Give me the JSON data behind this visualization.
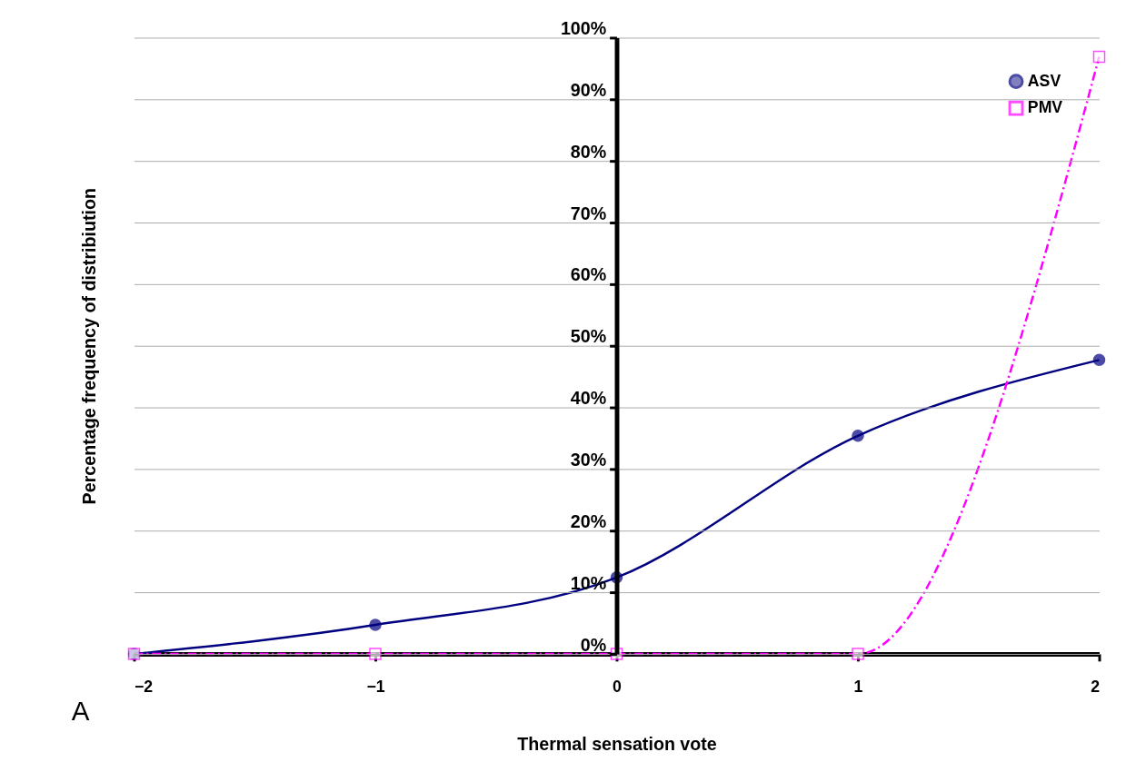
{
  "chart_data": {
    "type": "line",
    "xlabel": "Thermal sensation vote",
    "ylabel": "Percentage frequency of distribiution",
    "x": [
      -2,
      -1,
      0,
      1,
      2
    ],
    "xlim": [
      -2,
      2
    ],
    "xticks": [
      -2,
      -1,
      0,
      1,
      2
    ],
    "ylim": [
      0,
      1
    ],
    "yticks": [
      {
        "value": 0,
        "label": "0%"
      },
      {
        "value": 0.1,
        "label": "10%"
      },
      {
        "value": 0.2,
        "label": "20%"
      },
      {
        "value": 0.3,
        "label": "30%"
      },
      {
        "value": 0.4,
        "label": "40%"
      },
      {
        "value": 0.5,
        "label": "50%"
      },
      {
        "value": 0.6,
        "label": "60%"
      },
      {
        "value": 0.7,
        "label": "70%"
      },
      {
        "value": 0.8,
        "label": "80%"
      },
      {
        "value": 0.9,
        "label": "90%"
      },
      {
        "value": 1,
        "label": "100%"
      }
    ],
    "series": [
      {
        "name": "ASV",
        "color": "#000080",
        "values": [
          0,
          0.047,
          0.124,
          0.354,
          0.477
        ],
        "marker": "circle",
        "line_style": "solid"
      },
      {
        "name": "PMV",
        "color": "#ff00ff",
        "values": [
          0,
          0,
          0,
          0,
          0.969
        ],
        "marker": "square",
        "line_style": "dashdot"
      }
    ],
    "grid": "y",
    "legend": "top right",
    "annotations": [
      "A"
    ]
  }
}
